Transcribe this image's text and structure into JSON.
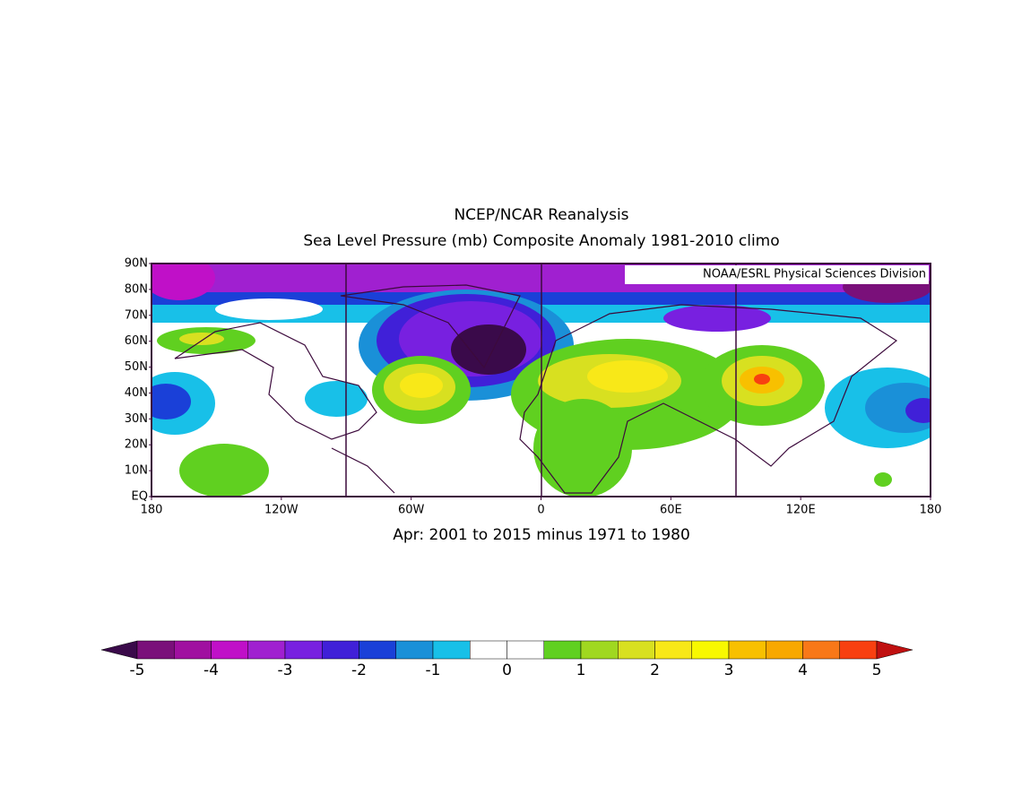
{
  "title": "NCEP/NCAR Reanalysis",
  "subtitle": "Sea Level Pressure (mb) Composite Anomaly 1981-2010 climo",
  "credit": "NOAA/ESRL Physical Sciences Division",
  "caption": "Apr: 2001 to 2015 minus 1971 to 1980",
  "map": {
    "lat_labels": [
      "90N",
      "80N",
      "70N",
      "60N",
      "50N",
      "40N",
      "30N",
      "20N",
      "10N",
      "EQ"
    ],
    "lon_labels": [
      "180",
      "120W",
      "60W",
      "0",
      "60E",
      "120E",
      "180"
    ]
  },
  "colorbar": {
    "colors": [
      "#3a0a4a",
      "#7a107a",
      "#a010a0",
      "#c010c8",
      "#a020d0",
      "#7820e0",
      "#4020d8",
      "#1a40d8",
      "#1a90d8",
      "#18c0e8",
      "#ffffff",
      "#ffffff",
      "#60d020",
      "#a0d820",
      "#d8e020",
      "#f8e818",
      "#f8f800",
      "#f8c000",
      "#f8a800",
      "#f87818",
      "#f84010",
      "#c01010"
    ],
    "ticks": [
      -5,
      -4,
      -3,
      -2,
      -1,
      0,
      1,
      2,
      3,
      4,
      5
    ]
  }
}
